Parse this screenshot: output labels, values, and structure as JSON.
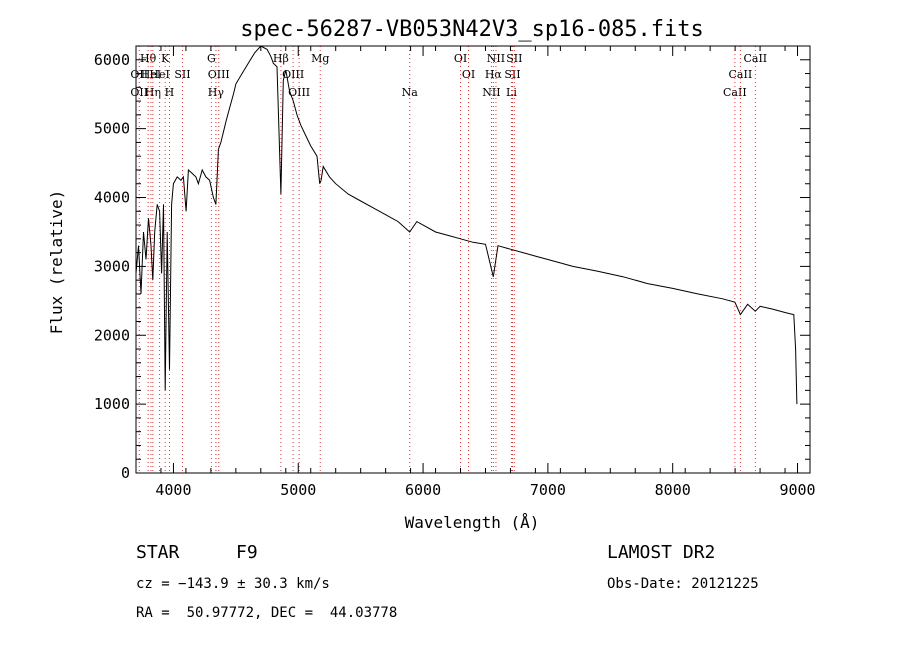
{
  "chart_data": {
    "type": "line",
    "title": "spec-56287-VB053N42V3_sp16-085.fits",
    "xlabel": "Wavelength (Å)",
    "ylabel": "Flux (relative)",
    "xlim": [
      3700,
      9100
    ],
    "ylim": [
      0,
      6200
    ],
    "xticks": [
      4000,
      5000,
      6000,
      7000,
      8000,
      9000
    ],
    "yticks": [
      0,
      1000,
      2000,
      3000,
      4000,
      5000,
      6000
    ],
    "grid": false,
    "series": [
      {
        "x": [
          3700,
          3720,
          3740,
          3760,
          3780,
          3800,
          3820,
          3835,
          3850,
          3870,
          3889,
          3905,
          3920,
          3934,
          3950,
          3968,
          3985,
          4000,
          4030,
          4060,
          4080,
          4101,
          4120,
          4150,
          4180,
          4200,
          4230,
          4260,
          4290,
          4320,
          4340,
          4360,
          4380,
          4420,
          4450,
          4480,
          4500,
          4550,
          4600,
          4650,
          4700,
          4750,
          4780,
          4800,
          4830,
          4861,
          4880,
          4900,
          4930,
          4960,
          4990,
          5020,
          5060,
          5100,
          5150,
          5172,
          5183,
          5200,
          5250,
          5300,
          5400,
          5500,
          5600,
          5700,
          5800,
          5893,
          5950,
          6000,
          6100,
          6200,
          6300,
          6400,
          6500,
          6563,
          6600,
          6700,
          6800,
          6900,
          7000,
          7200,
          7400,
          7600,
          7800,
          8000,
          8200,
          8400,
          8498,
          8542,
          8600,
          8662,
          8700,
          8800,
          8900,
          8970,
          8985,
          8995
        ],
        "values": [
          2900,
          3300,
          2600,
          3500,
          3100,
          3700,
          3300,
          2800,
          3500,
          3900,
          3800,
          2900,
          3900,
          1200,
          3500,
          1500,
          3900,
          4200,
          4300,
          4250,
          4300,
          3800,
          4400,
          4350,
          4300,
          4200,
          4400,
          4300,
          4250,
          4000,
          3900,
          4700,
          4800,
          5100,
          5300,
          5500,
          5650,
          5800,
          5950,
          6100,
          6200,
          6150,
          6050,
          5950,
          5900,
          4050,
          5700,
          5850,
          5550,
          5400,
          5200,
          5050,
          4900,
          4750,
          4600,
          4200,
          4250,
          4450,
          4300,
          4200,
          4050,
          3950,
          3850,
          3750,
          3650,
          3500,
          3650,
          3600,
          3500,
          3450,
          3400,
          3350,
          3320,
          2850,
          3300,
          3250,
          3200,
          3150,
          3100,
          3000,
          2930,
          2850,
          2750,
          2680,
          2600,
          2530,
          2480,
          2300,
          2450,
          2350,
          2420,
          2380,
          2330,
          2300,
          1800,
          1000
        ]
      }
    ],
    "line_markers": [
      {
        "x": 3726,
        "rows": [
          {
            "text": "OII",
            "level": 1
          },
          {
            "text": "OII",
            "level": 2
          }
        ]
      },
      {
        "x": 3797,
        "rows": [
          {
            "text": "Hθ",
            "level": 0
          }
        ]
      },
      {
        "x": 3820,
        "rows": [
          {
            "text": "HeI",
            "level": 1
          }
        ]
      },
      {
        "x": 3835,
        "rows": [
          {
            "text": "Hη",
            "level": 2
          }
        ]
      },
      {
        "x": 3889,
        "rows": [
          {
            "text": "HeI",
            "level": 1
          }
        ]
      },
      {
        "x": 3934,
        "rows": [
          {
            "text": "K",
            "level": 0
          }
        ]
      },
      {
        "x": 3968,
        "rows": [
          {
            "text": "H",
            "level": 2
          }
        ]
      },
      {
        "x": 4072,
        "rows": [
          {
            "text": "SII",
            "level": 1
          }
        ]
      },
      {
        "x": 4304,
        "rows": [
          {
            "text": "G",
            "level": 0
          }
        ]
      },
      {
        "x": 4340,
        "rows": [
          {
            "text": "Hγ",
            "level": 2
          }
        ]
      },
      {
        "x": 4363,
        "rows": [
          {
            "text": "OIII",
            "level": 1
          }
        ]
      },
      {
        "x": 4861,
        "rows": [
          {
            "text": "Hβ",
            "level": 0
          }
        ]
      },
      {
        "x": 4959,
        "rows": [
          {
            "text": "OIII",
            "level": 1
          }
        ]
      },
      {
        "x": 5007,
        "rows": [
          {
            "text": "OIII",
            "level": 2
          }
        ]
      },
      {
        "x": 5176,
        "rows": [
          {
            "text": "Mg",
            "level": 0
          }
        ]
      },
      {
        "x": 5893,
        "rows": [
          {
            "text": "Na",
            "level": 2
          }
        ]
      },
      {
        "x": 6300,
        "rows": [
          {
            "text": "OI",
            "level": 0
          }
        ]
      },
      {
        "x": 6364,
        "rows": [
          {
            "text": "OI",
            "level": 1
          }
        ]
      },
      {
        "x": 6548,
        "rows": [
          {
            "text": "NII",
            "level": 2
          }
        ]
      },
      {
        "x": 6563,
        "rows": [
          {
            "text": "Hα",
            "level": 1
          }
        ]
      },
      {
        "x": 6584,
        "rows": [
          {
            "text": "NII",
            "level": 0
          }
        ]
      },
      {
        "x": 6708,
        "rows": [
          {
            "text": "Li",
            "level": 2
          }
        ]
      },
      {
        "x": 6716,
        "rows": [
          {
            "text": "SII",
            "level": 1
          }
        ]
      },
      {
        "x": 6731,
        "rows": [
          {
            "text": "SII",
            "level": 0
          }
        ]
      },
      {
        "x": 8498,
        "rows": [
          {
            "text": "CaII",
            "level": 2
          }
        ]
      },
      {
        "x": 8542,
        "rows": [
          {
            "text": "CaII",
            "level": 1
          }
        ]
      },
      {
        "x": 8662,
        "rows": [
          {
            "text": "CaII",
            "level": 0
          }
        ]
      }
    ],
    "colors": {
      "spectrum": "#000000",
      "axes": "#000000",
      "markers": "#d33a3a"
    }
  },
  "info": {
    "object_class": "STAR",
    "subclass": "F9",
    "survey": "LAMOST DR2",
    "cz": "cz = −143.9 ± 30.3 km/s",
    "obs_date": "Obs-Date: 20121225",
    "coords": "RA =  50.97772, DEC =  44.03778"
  }
}
